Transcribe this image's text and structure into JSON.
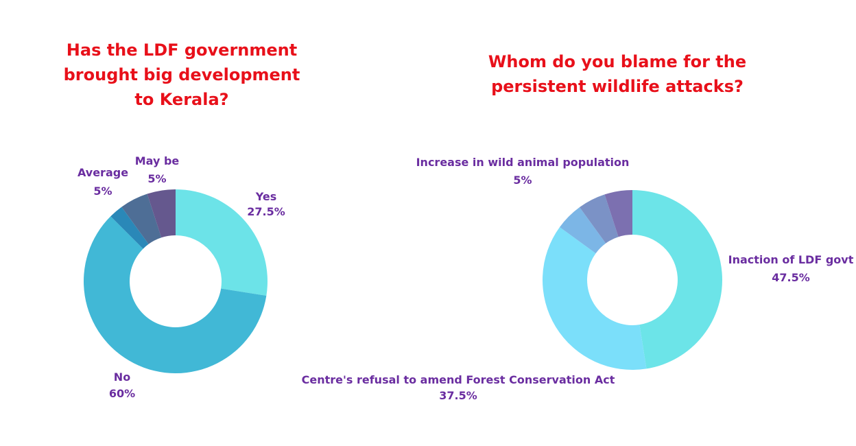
{
  "chart_data": [
    {
      "type": "pie",
      "title": "Has the LDF government\nbrought big development\nto Kerala?",
      "slices": [
        {
          "label": "Yes",
          "value": 27.5,
          "display": "27.5%",
          "color": "#6ce3e8"
        },
        {
          "label": "No",
          "value": 60,
          "display": "60%",
          "color": "#41b8d6"
        },
        {
          "label": "",
          "value": 2.5,
          "display": "",
          "color": "#2a88b8"
        },
        {
          "label": "Average",
          "value": 5,
          "display": "5%",
          "color": "#4e6e96"
        },
        {
          "label": "May be",
          "value": 5,
          "display": "5%",
          "color": "#65588e"
        }
      ]
    },
    {
      "type": "pie",
      "title": "Whom do you blame for the\npersistent wildlife attacks?",
      "slices": [
        {
          "label": "Inaction of LDF govt",
          "value": 47.5,
          "display": "47.5%",
          "color": "#6ce4e8"
        },
        {
          "label": "Centre's refusal to amend Forest Conservation Act",
          "value": 37.5,
          "display": "37.5%",
          "color": "#7bdffa"
        },
        {
          "label": "",
          "value": 5,
          "display": "",
          "color": "#7cb6e6"
        },
        {
          "label": "",
          "value": 5,
          "display": "",
          "color": "#7b92c6"
        },
        {
          "label": "Increase in wild animal population",
          "value": 5,
          "display": "5%",
          "color": "#7c70b0"
        }
      ]
    }
  ]
}
